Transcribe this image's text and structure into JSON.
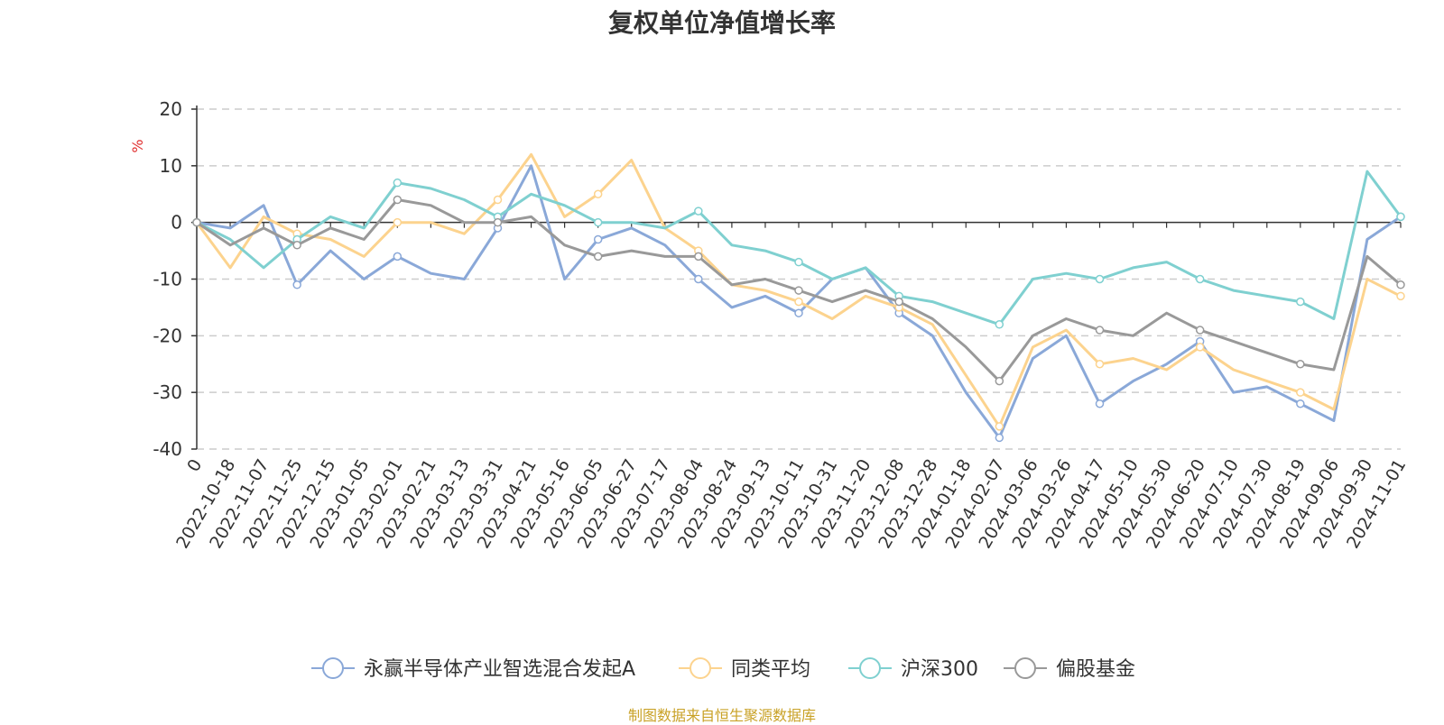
{
  "title": "复权单位净值增长率",
  "source_note": "制图数据来自恒生聚源数据库",
  "chart_data": {
    "type": "line",
    "title": "复权单位净值增长率",
    "ylabel": "%",
    "ylim": [
      -40,
      20
    ],
    "yticks": [
      20,
      10,
      0,
      -10,
      -20,
      -30,
      -40
    ],
    "grid": "horizontal-dashed",
    "legend_position": "bottom",
    "x_tick_labels": [
      "0",
      "2022-10-18",
      "2022-11-07",
      "2022-11-25",
      "2022-12-15",
      "2023-01-05",
      "2023-02-01",
      "2023-02-21",
      "2023-03-13",
      "2023-03-31",
      "2023-04-21",
      "2023-05-16",
      "2023-06-05",
      "2023-06-27",
      "2023-07-17",
      "2023-08-04",
      "2023-08-24",
      "2023-09-13",
      "2023-10-11",
      "2023-10-31",
      "2023-11-20",
      "2023-12-08",
      "2023-12-28",
      "2024-01-18",
      "2024-02-07",
      "2024-03-06",
      "2024-03-26",
      "2024-04-17",
      "2024-05-10",
      "2024-05-30",
      "2024-06-20",
      "2024-07-10",
      "2024-07-30",
      "2024-08-19",
      "2024-09-06",
      "2024-09-30",
      "2024-11-01"
    ],
    "series": [
      {
        "name": "永赢半导体产业智选混合发起A",
        "color": "#8aa8d8",
        "values": [
          0,
          -1,
          3,
          -11,
          -5,
          -10,
          -6,
          -9,
          -10,
          -1,
          10,
          -10,
          -3,
          -1,
          -4,
          -10,
          -15,
          -13,
          -16,
          -10,
          -8,
          -16,
          -20,
          -30,
          -38,
          -24,
          -20,
          -32,
          -28,
          -25,
          -21,
          -30,
          -29,
          -32,
          -35,
          -3,
          1
        ]
      },
      {
        "name": "同类平均",
        "color": "#fcd38e",
        "values": [
          0,
          -8,
          1,
          -2,
          -3,
          -6,
          0,
          0,
          -2,
          4,
          12,
          1,
          5,
          11,
          -1,
          -5,
          -11,
          -12,
          -14,
          -17,
          -13,
          -15,
          -18,
          -27,
          -36,
          -22,
          -19,
          -25,
          -24,
          -26,
          -22,
          -26,
          -28,
          -30,
          -33,
          -10,
          -13
        ]
      },
      {
        "name": "沪深300",
        "color": "#7fd0d0",
        "values": [
          0,
          -3,
          -8,
          -3,
          1,
          -1,
          7,
          6,
          4,
          1,
          5,
          3,
          0,
          0,
          -1,
          2,
          -4,
          -5,
          -7,
          -10,
          -8,
          -13,
          -14,
          -16,
          -18,
          -10,
          -9,
          -10,
          -8,
          -7,
          -10,
          -12,
          -13,
          -14,
          -17,
          9,
          1
        ]
      },
      {
        "name": "偏股基金",
        "color": "#999999",
        "values": [
          0,
          -4,
          -1,
          -4,
          -1,
          -3,
          4,
          3,
          0,
          0,
          1,
          -4,
          -6,
          -5,
          -6,
          -6,
          -11,
          -10,
          -12,
          -14,
          -12,
          -14,
          -17,
          -22,
          -28,
          -20,
          -17,
          -19,
          -20,
          -16,
          -19,
          -21,
          -23,
          -25,
          -26,
          -6,
          -11
        ]
      }
    ]
  }
}
